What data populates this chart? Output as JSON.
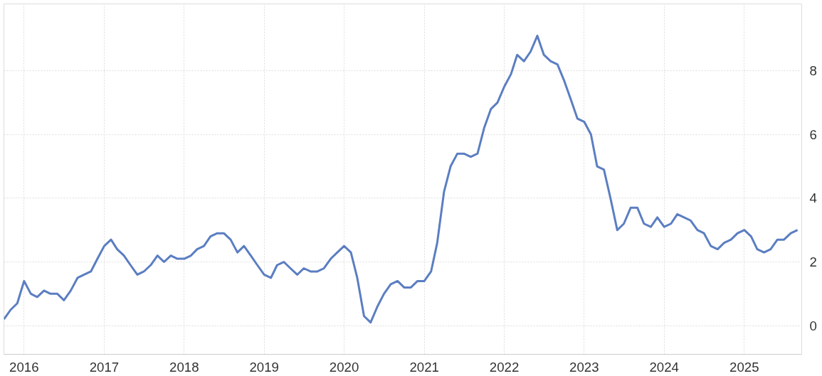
{
  "chart_data": {
    "type": "line",
    "x": [
      "2015-10",
      "2015-11",
      "2015-12",
      "2016-01",
      "2016-02",
      "2016-03",
      "2016-04",
      "2016-05",
      "2016-06",
      "2016-07",
      "2016-08",
      "2016-09",
      "2016-10",
      "2016-11",
      "2016-12",
      "2017-01",
      "2017-02",
      "2017-03",
      "2017-04",
      "2017-05",
      "2017-06",
      "2017-07",
      "2017-08",
      "2017-09",
      "2017-10",
      "2017-11",
      "2017-12",
      "2018-01",
      "2018-02",
      "2018-03",
      "2018-04",
      "2018-05",
      "2018-06",
      "2018-07",
      "2018-08",
      "2018-09",
      "2018-10",
      "2018-11",
      "2018-12",
      "2019-01",
      "2019-02",
      "2019-03",
      "2019-04",
      "2019-05",
      "2019-06",
      "2019-07",
      "2019-08",
      "2019-09",
      "2019-10",
      "2019-11",
      "2019-12",
      "2020-01",
      "2020-02",
      "2020-03",
      "2020-04",
      "2020-05",
      "2020-06",
      "2020-07",
      "2020-08",
      "2020-09",
      "2020-10",
      "2020-11",
      "2020-12",
      "2021-01",
      "2021-02",
      "2021-03",
      "2021-04",
      "2021-05",
      "2021-06",
      "2021-07",
      "2021-08",
      "2021-09",
      "2021-10",
      "2021-11",
      "2021-12",
      "2022-01",
      "2022-02",
      "2022-03",
      "2022-04",
      "2022-05",
      "2022-06",
      "2022-07",
      "2022-08",
      "2022-09",
      "2022-10",
      "2022-11",
      "2022-12",
      "2023-01",
      "2023-02",
      "2023-03",
      "2023-04",
      "2023-05",
      "2023-06",
      "2023-07",
      "2023-08",
      "2023-09",
      "2023-10",
      "2023-11",
      "2023-12",
      "2024-01",
      "2024-02",
      "2024-03",
      "2024-04",
      "2024-05",
      "2024-06",
      "2024-07",
      "2024-08",
      "2024-09",
      "2024-10",
      "2024-11",
      "2024-12",
      "2025-01",
      "2025-02",
      "2025-03",
      "2025-04",
      "2025-05",
      "2025-06",
      "2025-07",
      "2025-08",
      "2025-09"
    ],
    "series": [
      {
        "color": "#5b7ec2",
        "values": [
          0.2,
          0.5,
          0.7,
          1.4,
          1.0,
          0.9,
          1.1,
          1.0,
          1.0,
          0.8,
          1.1,
          1.5,
          1.6,
          1.7,
          2.1,
          2.5,
          2.7,
          2.4,
          2.2,
          1.9,
          1.6,
          1.7,
          1.9,
          2.2,
          2.0,
          2.2,
          2.1,
          2.1,
          2.2,
          2.4,
          2.5,
          2.8,
          2.9,
          2.9,
          2.7,
          2.3,
          2.5,
          2.2,
          1.9,
          1.6,
          1.5,
          1.9,
          2.0,
          1.8,
          1.6,
          1.8,
          1.7,
          1.7,
          1.8,
          2.1,
          2.3,
          2.5,
          2.3,
          1.5,
          0.3,
          0.1,
          0.6,
          1.0,
          1.3,
          1.4,
          1.2,
          1.2,
          1.4,
          1.4,
          1.7,
          2.6,
          4.2,
          5.0,
          5.4,
          5.4,
          5.3,
          5.4,
          6.2,
          6.8,
          7.0,
          7.5,
          7.9,
          8.5,
          8.3,
          8.6,
          9.1,
          8.5,
          8.3,
          8.2,
          7.7,
          7.1,
          6.5,
          6.4,
          6.0,
          5.0,
          4.9,
          4.0,
          3.0,
          3.2,
          3.7,
          3.7,
          3.2,
          3.1,
          3.4,
          3.1,
          3.2,
          3.5,
          3.4,
          3.3,
          3.0,
          2.9,
          2.5,
          2.4,
          2.6,
          2.7,
          2.9,
          3.0,
          2.8,
          2.4,
          2.3,
          2.4,
          2.7,
          2.7,
          2.9,
          3.0
        ]
      }
    ],
    "xlim": [
      "2015-10",
      "2025-09-20"
    ],
    "xticks": [
      {
        "value": "2016",
        "label": "2016"
      },
      {
        "value": "2017",
        "label": "2017"
      },
      {
        "value": "2018",
        "label": "2018"
      },
      {
        "value": "2019",
        "label": "2019"
      },
      {
        "value": "2020",
        "label": "2020"
      },
      {
        "value": "2021",
        "label": "2021"
      },
      {
        "value": "2022",
        "label": "2022"
      },
      {
        "value": "2023",
        "label": "2023"
      },
      {
        "value": "2024",
        "label": "2024"
      },
      {
        "value": "2025",
        "label": "2025"
      }
    ],
    "ylim": [
      -0.9,
      10.1
    ],
    "yticks": [
      0,
      2,
      4,
      6,
      8
    ],
    "grid": true,
    "line_style": "solid",
    "marker": "none"
  }
}
